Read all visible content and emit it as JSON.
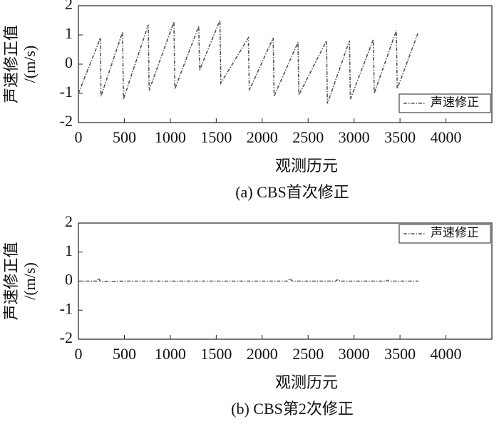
{
  "chart_data": [
    {
      "type": "line",
      "title": "(a) CBS首次修正",
      "xlabel": "观测历元",
      "ylabel": [
        "声速修正值",
        "/(m/s)"
      ],
      "xlim": [
        0,
        4500
      ],
      "ylim": [
        -2,
        2
      ],
      "xticks": [
        0,
        500,
        1000,
        1500,
        2000,
        2500,
        3000,
        3500,
        4000
      ],
      "yticks": [
        -2,
        -1,
        0,
        1,
        2
      ],
      "legend": "lower right",
      "series": [
        {
          "name": "声速修正",
          "color": "#555555",
          "x": [
            0,
            240,
            245,
            480,
            490,
            760,
            770,
            1040,
            1050,
            1310,
            1320,
            1540,
            1550,
            1850,
            1860,
            2120,
            2130,
            2390,
            2400,
            2700,
            2710,
            2950,
            2960,
            3210,
            3220,
            3460,
            3470,
            3700
          ],
          "values": [
            -1,
            0.9,
            -1.1,
            1.1,
            -1.2,
            1.35,
            -0.9,
            1.45,
            -0.85,
            1.3,
            -0.2,
            1.5,
            -0.65,
            0.9,
            -0.9,
            0.9,
            -1.1,
            0.75,
            -1.05,
            0.8,
            -1.35,
            0.8,
            -1.2,
            0.85,
            -1.0,
            1.15,
            -0.85,
            1.1
          ]
        }
      ]
    },
    {
      "type": "line",
      "title": "(b) CBS第2次修正",
      "xlabel": "观测历元",
      "ylabel": [
        "声速修正值",
        "/(m/s)"
      ],
      "xlim": [
        0,
        4500
      ],
      "ylim": [
        -2,
        2
      ],
      "xticks": [
        0,
        500,
        1000,
        1500,
        2000,
        2500,
        3000,
        3500,
        4000
      ],
      "yticks": [
        -2,
        -1,
        0,
        1,
        2
      ],
      "legend": "upper right",
      "series": [
        {
          "name": "声速修正",
          "color": "#555555",
          "x": [
            0,
            200,
            220,
            240,
            500,
            1000,
            1500,
            2000,
            2280,
            2300,
            2330,
            2800,
            2820,
            2850,
            3350,
            3360,
            3380,
            3700
          ],
          "values": [
            0,
            0,
            0.1,
            -0.02,
            0,
            0,
            0,
            0,
            0,
            0.08,
            0,
            0,
            0.05,
            0,
            0,
            0.03,
            0,
            0
          ]
        }
      ]
    }
  ]
}
